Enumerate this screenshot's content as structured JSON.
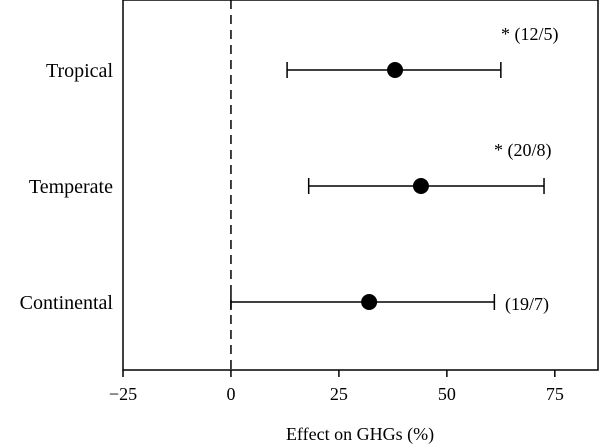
{
  "chart_data": {
    "type": "forest",
    "categories": [
      "Tropical",
      "Temperate",
      "Continental"
    ],
    "estimates": [
      38,
      44,
      32
    ],
    "ci_low": [
      13,
      18,
      0
    ],
    "ci_high": [
      62.5,
      72.5,
      61
    ],
    "annotations": [
      "* (12/5)",
      "* (20/8)",
      "(19/7)"
    ],
    "xlabel": "Effect on GHGs (%)",
    "ylabel": "",
    "xlim": [
      -25,
      85
    ],
    "xticks": [
      -25,
      0,
      25,
      50,
      75
    ],
    "xtick_labels": [
      "−25",
      "0",
      "25",
      "50",
      "75"
    ],
    "reference_line": 0,
    "grid": false,
    "colors": {
      "marker": "#000000",
      "line": "#000000",
      "background": "#ffffff"
    }
  }
}
